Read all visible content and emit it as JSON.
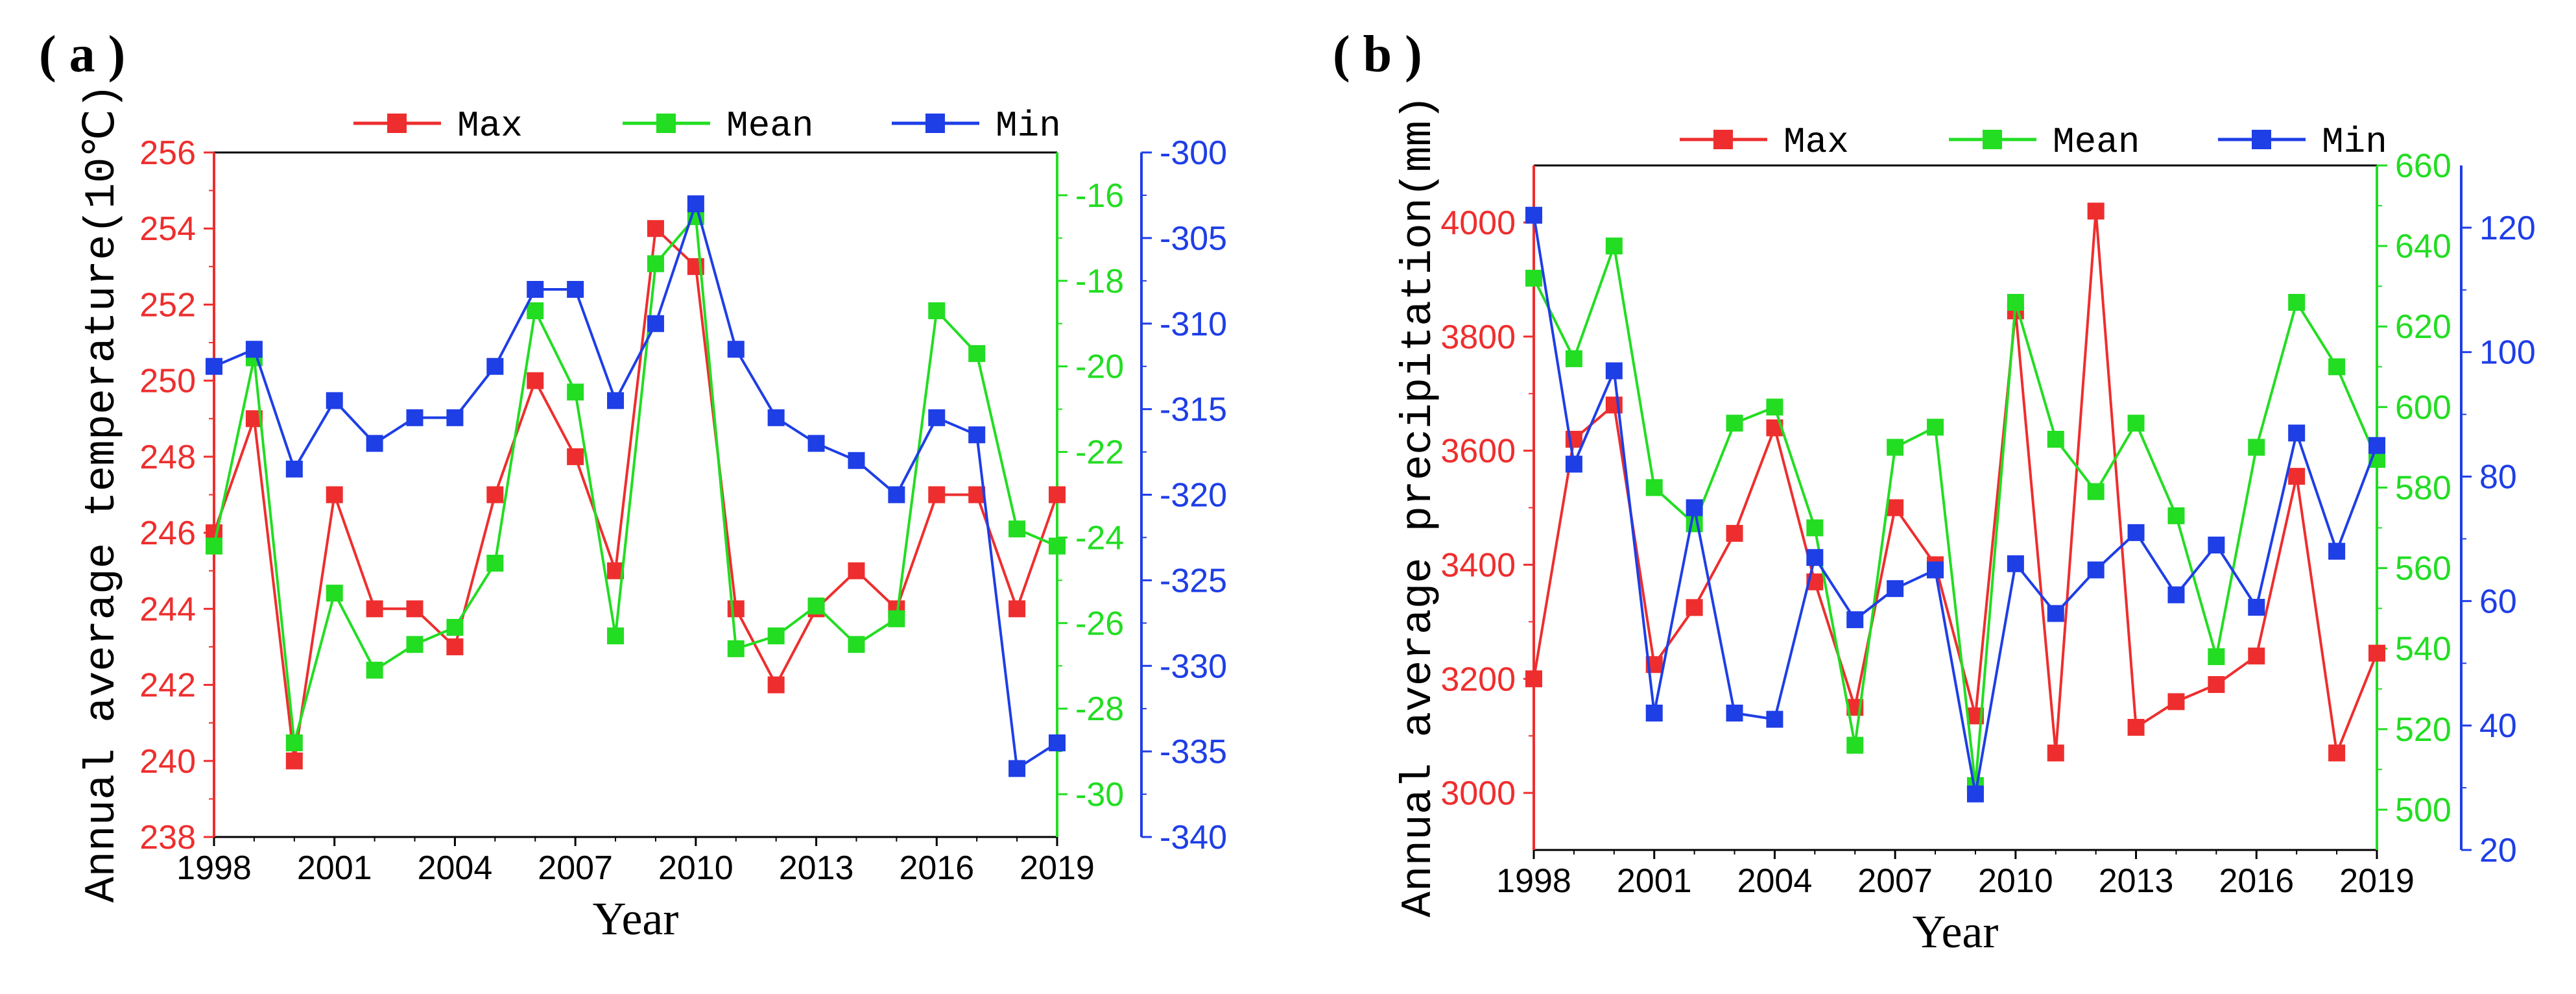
{
  "colors": {
    "max": "#ee2e2e",
    "mean": "#22dd22",
    "min": "#1e3ee6",
    "axis": "#000000"
  },
  "chart_data": [
    {
      "type": "line",
      "panel_label": "( a )",
      "xlabel": "Year",
      "ylabel": "Annual average temperature(10℃)",
      "x": [
        1998,
        1999,
        2000,
        2001,
        2002,
        2003,
        2004,
        2005,
        2006,
        2007,
        2008,
        2009,
        2010,
        2011,
        2012,
        2013,
        2014,
        2015,
        2016,
        2017,
        2018,
        2019
      ],
      "xlim": [
        1998,
        2019
      ],
      "xticks": [
        1998,
        2001,
        2004,
        2007,
        2010,
        2013,
        2016,
        2019
      ],
      "xtick_labels": [
        "1998",
        "2001",
        "2004",
        "2007",
        "2010",
        "2013",
        "2016",
        "2019"
      ],
      "legend": [
        "Max",
        "Mean",
        "Min"
      ],
      "series": [
        {
          "name": "Max",
          "axis": "left",
          "color": "#ee2e2e",
          "ylim": [
            238,
            256
          ],
          "yticks": [
            238,
            240,
            242,
            244,
            246,
            248,
            250,
            252,
            254,
            256
          ],
          "ytick_labels": [
            "238",
            "240",
            "242",
            "244",
            "246",
            "248",
            "250",
            "252",
            "254",
            "256"
          ],
          "values": [
            246,
            249,
            240,
            247,
            244,
            244,
            243,
            247,
            250,
            248,
            245,
            254,
            253,
            244,
            242,
            244,
            245,
            244,
            247,
            247,
            244,
            247
          ]
        },
        {
          "name": "Mean",
          "axis": "right-inner",
          "color": "#22dd22",
          "ylim": [
            -31,
            -15
          ],
          "yticks": [
            -30,
            -28,
            -26,
            -24,
            -22,
            -20,
            -18,
            -16
          ],
          "ytick_labels": [
            "-30",
            "-28",
            "-26",
            "-24",
            "-22",
            "-20",
            "-18",
            "-16"
          ],
          "values": [
            -24.2,
            -19.8,
            -28.8,
            -25.3,
            -27.1,
            -26.5,
            -26.1,
            -24.6,
            -18.7,
            -20.6,
            -26.3,
            -17.6,
            -16.5,
            -26.6,
            -26.3,
            -25.6,
            -26.5,
            -25.9,
            -18.7,
            -19.7,
            -23.8,
            -24.2
          ]
        },
        {
          "name": "Min",
          "axis": "right-outer",
          "color": "#1e3ee6",
          "ylim": [
            -340,
            -300
          ],
          "yticks": [
            -340,
            -335,
            -330,
            -325,
            -320,
            -315,
            -310,
            -305,
            -300
          ],
          "ytick_labels": [
            "-340",
            "-335",
            "-330",
            "-325",
            "-320",
            "-315",
            "-310",
            "-305",
            "-300"
          ],
          "values": [
            -312.5,
            -311.5,
            -318.5,
            -314.5,
            -317,
            -315.5,
            -315.5,
            -312.5,
            -308,
            -308,
            -314.5,
            -310,
            -303,
            -311.5,
            -315.5,
            -317,
            -318,
            -320,
            -315.5,
            -316.5,
            -336,
            -334.5
          ]
        }
      ]
    },
    {
      "type": "line",
      "panel_label": "( b )",
      "xlabel": "Year",
      "ylabel": "Annual average precipitation(mm)",
      "x": [
        1998,
        1999,
        2000,
        2001,
        2002,
        2003,
        2004,
        2005,
        2006,
        2007,
        2008,
        2009,
        2010,
        2011,
        2012,
        2013,
        2014,
        2015,
        2016,
        2017,
        2018,
        2019
      ],
      "xlim": [
        1998,
        2019
      ],
      "xticks": [
        1998,
        2001,
        2004,
        2007,
        2010,
        2013,
        2016,
        2019
      ],
      "xtick_labels": [
        "1998",
        "2001",
        "2004",
        "2007",
        "2010",
        "2013",
        "2016",
        "2019"
      ],
      "legend": [
        "Max",
        "Mean",
        "Min"
      ],
      "series": [
        {
          "name": "Max",
          "axis": "left",
          "color": "#ee2e2e",
          "ylim": [
            2900,
            4100
          ],
          "yticks": [
            3000,
            3200,
            3400,
            3600,
            3800,
            4000
          ],
          "ytick_labels": [
            "3000",
            "3200",
            "3400",
            "3600",
            "3800",
            "4000"
          ],
          "values": [
            3200,
            3620,
            3680,
            3225,
            3325,
            3455,
            3640,
            3370,
            3150,
            3500,
            3400,
            3135,
            3845,
            3070,
            4020,
            3115,
            3160,
            3190,
            3240,
            3555,
            3070,
            3245
          ]
        },
        {
          "name": "Mean",
          "axis": "right-inner",
          "color": "#22dd22",
          "ylim": [
            490,
            660
          ],
          "yticks": [
            500,
            520,
            540,
            560,
            580,
            600,
            620,
            640,
            660
          ],
          "ytick_labels": [
            "500",
            "520",
            "540",
            "560",
            "580",
            "600",
            "620",
            "640",
            "660"
          ],
          "values": [
            632,
            612,
            640,
            580,
            571,
            596,
            600,
            570,
            516,
            590,
            595,
            506,
            626,
            592,
            579,
            596,
            573,
            538,
            590,
            626,
            610,
            587
          ]
        },
        {
          "name": "Min",
          "axis": "right-outer",
          "color": "#1e3ee6",
          "ylim": [
            20,
            130
          ],
          "yticks": [
            20,
            40,
            60,
            80,
            100,
            120
          ],
          "ytick_labels": [
            "20",
            "40",
            "60",
            "80",
            "100",
            "120"
          ],
          "values": [
            122,
            82,
            97,
            42,
            75,
            42,
            41,
            67,
            57,
            62,
            65,
            29,
            66,
            58,
            65,
            71,
            61,
            69,
            59,
            87,
            68,
            85
          ]
        }
      ]
    }
  ]
}
